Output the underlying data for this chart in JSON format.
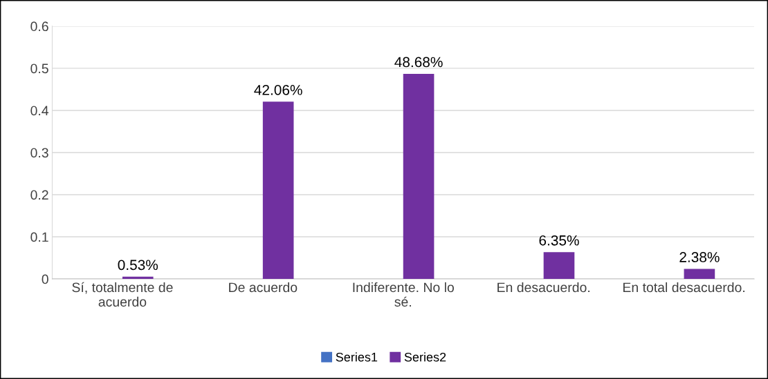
{
  "chart_data": {
    "type": "bar",
    "categories": [
      "Sí, totalmente de\nacuerdo",
      "De acuerdo",
      "Indiferente. No lo\nsé.",
      "En desacuerdo.",
      "En total desacuerdo."
    ],
    "series": [
      {
        "name": "Series1",
        "color": "#4472c4",
        "values": [
          null,
          null,
          null,
          null,
          null
        ]
      },
      {
        "name": "Series2",
        "color": "#7030a0",
        "values": [
          0.0053,
          0.4206,
          0.4868,
          0.0635,
          0.0238
        ],
        "value_labels": [
          "0.53%",
          "42.06%",
          "48.68%",
          "6.35%",
          "2.38%"
        ]
      }
    ],
    "ylim": [
      0,
      0.6
    ],
    "yticks": [
      0,
      0.1,
      0.2,
      0.3,
      0.4,
      0.5,
      0.6
    ],
    "grid": "y",
    "legend": "bottom"
  }
}
